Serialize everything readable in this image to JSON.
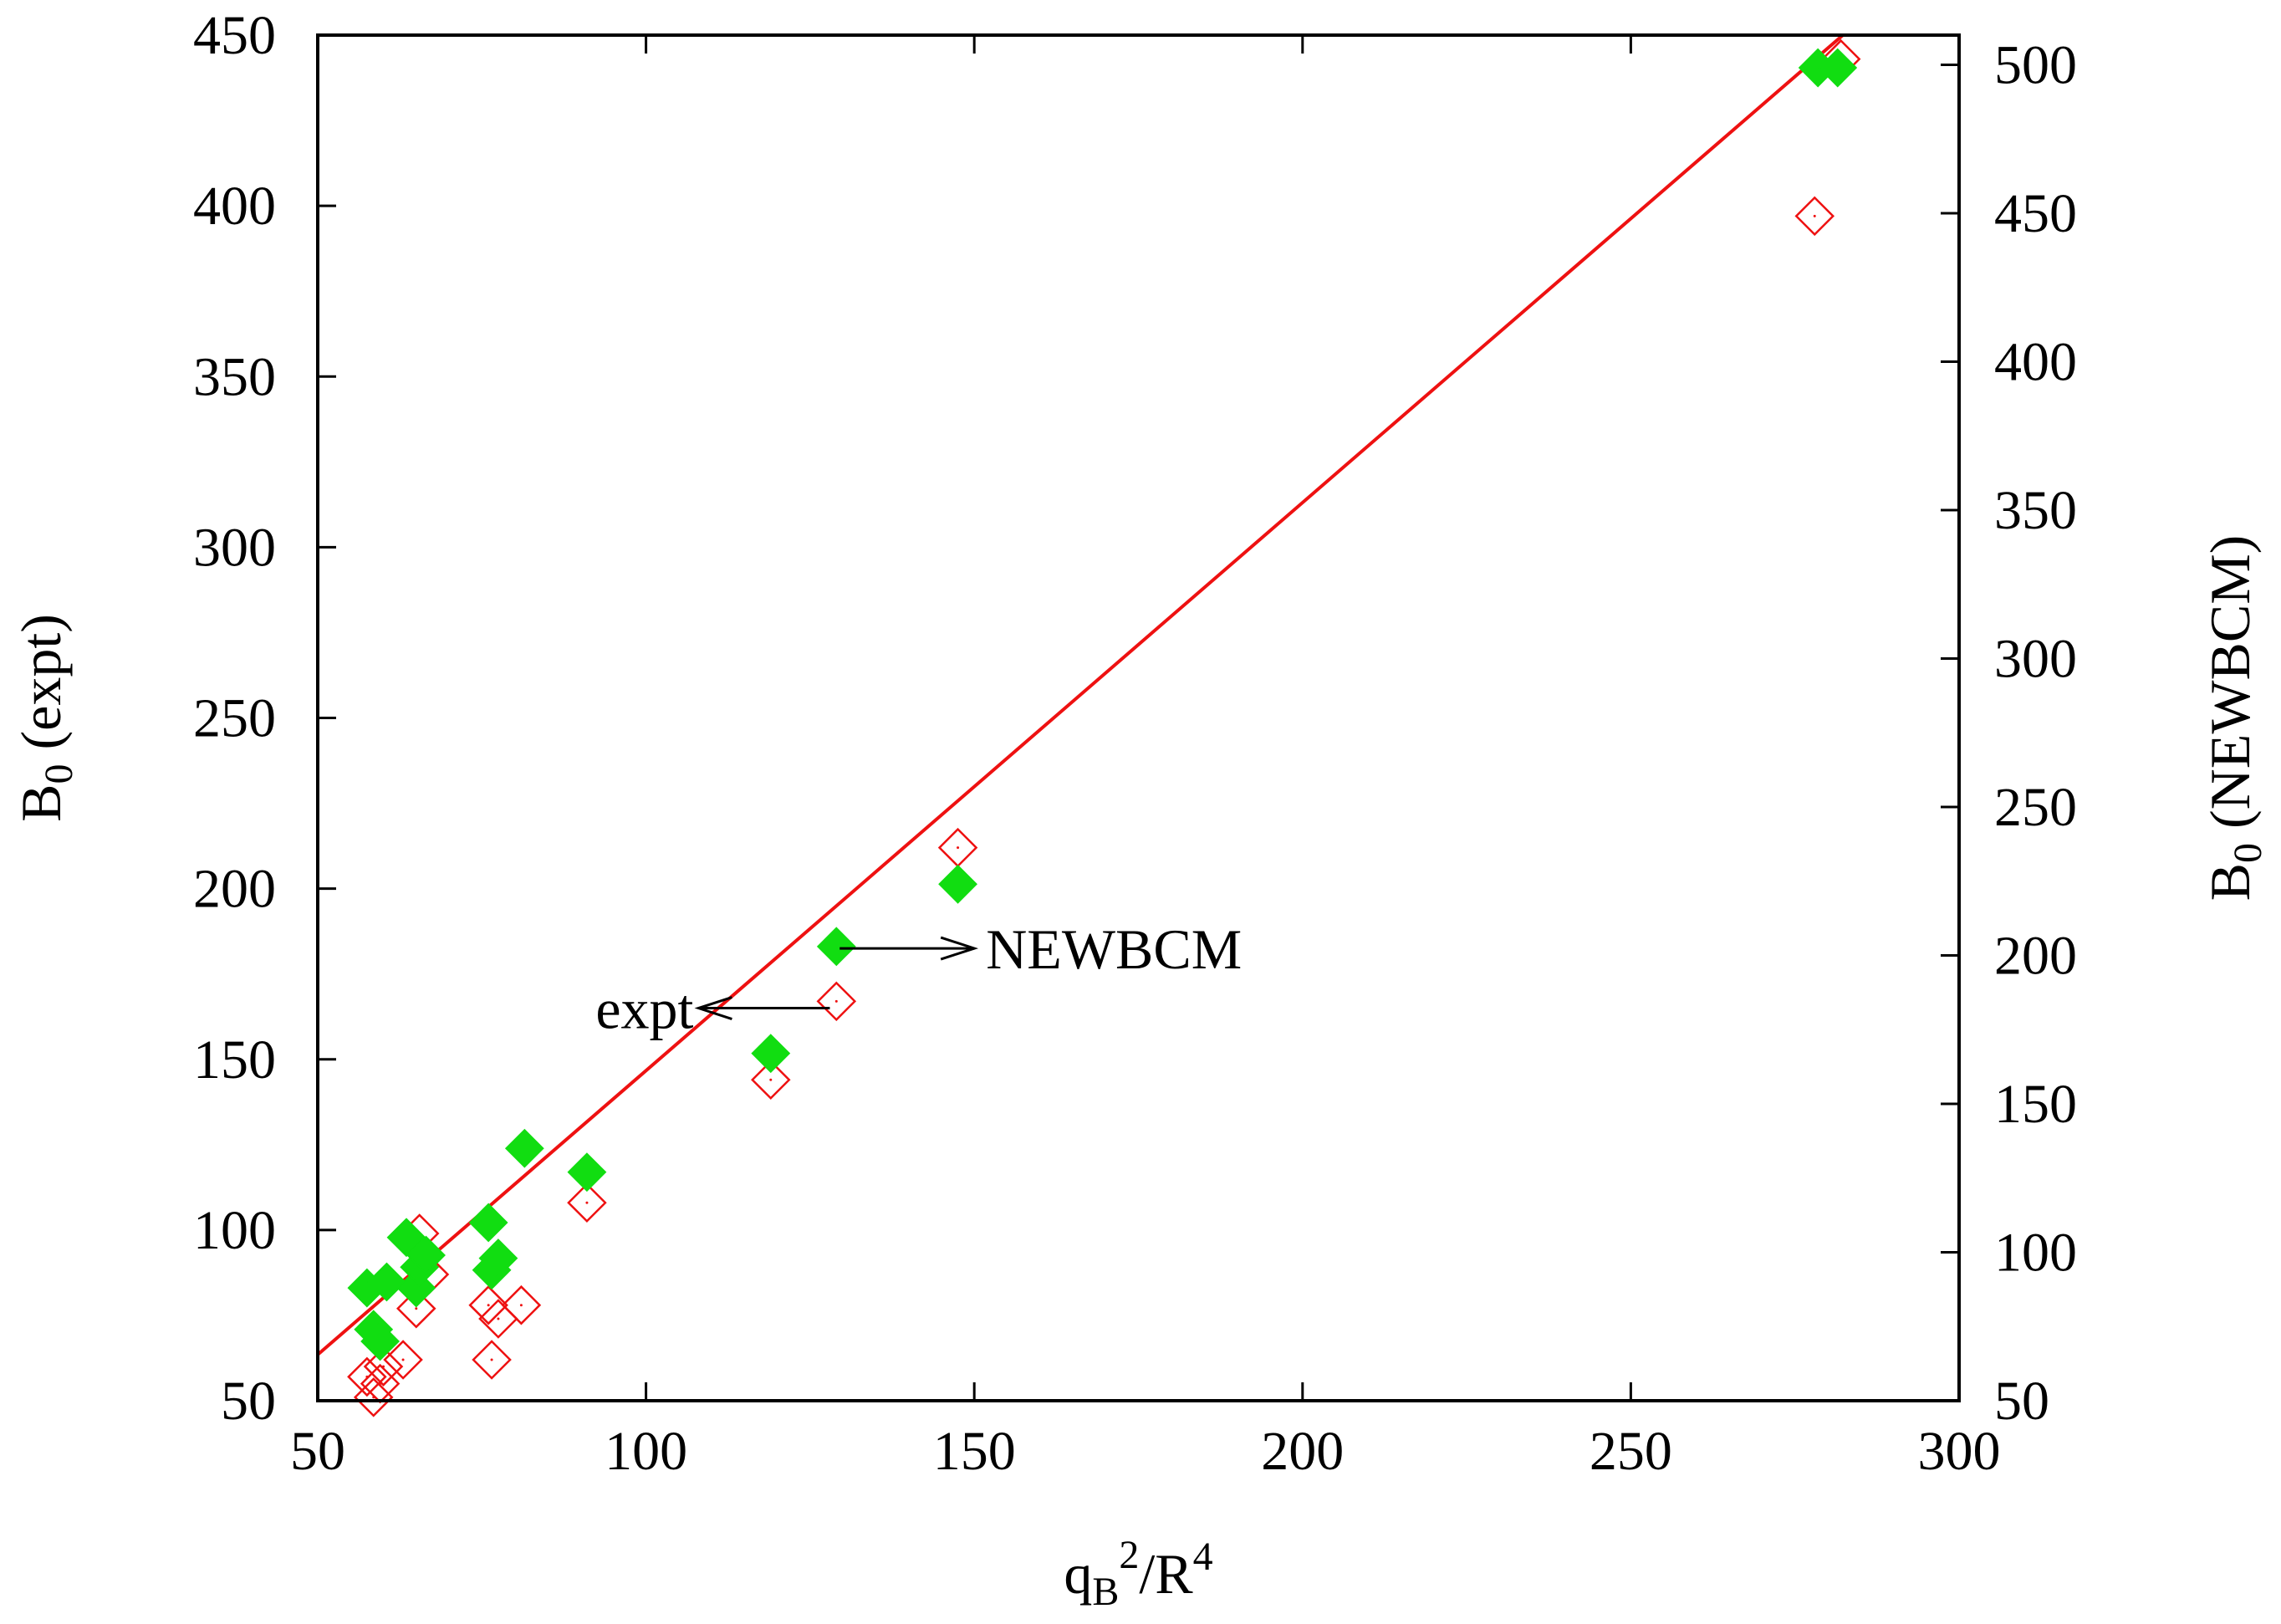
{
  "chart_data": {
    "type": "scatter",
    "title": "",
    "xlabel": {
      "base": "q",
      "sub": "B",
      "sup1": "2",
      "mid": "/R",
      "sup2": "4"
    },
    "ylabel_left": {
      "base": "B",
      "sub": "0",
      "rest": " (expt)"
    },
    "ylabel_right": {
      "base": "B",
      "sub": "0",
      "rest": " (NEWBCM)"
    },
    "xlim": [
      50,
      300
    ],
    "ylim_left": [
      50,
      450
    ],
    "ylim_right": [
      50,
      510
    ],
    "x_ticks": [
      "50",
      "100",
      "150",
      "200",
      "250",
      "300"
    ],
    "y_ticks_left": [
      "50",
      "100",
      "150",
      "200",
      "250",
      "300",
      "350",
      "400",
      "450"
    ],
    "y_ticks_right": [
      "50",
      "100",
      "150",
      "200",
      "250",
      "300",
      "350",
      "400",
      "450",
      "500"
    ],
    "fit_line": {
      "x": [
        50,
        282.3
      ],
      "y": [
        63.5,
        450
      ],
      "color": "#ee1111"
    },
    "annotations": [
      {
        "text": "NEWBCM",
        "arrow_from": [
          129.5,
          182.5
        ],
        "arrow_to": [
          150,
          182.5
        ],
        "direction": "right"
      },
      {
        "text": "expt",
        "arrow_from": [
          128,
          165
        ],
        "arrow_to": [
          108,
          165
        ],
        "direction": "left"
      }
    ],
    "series": [
      {
        "name": "expt",
        "axis": "left",
        "marker": "open-diamond",
        "color": "#ee1111",
        "points": [
          [
            57.5,
            57
          ],
          [
            58.5,
            51
          ],
          [
            59.5,
            55
          ],
          [
            60,
            60
          ],
          [
            63,
            62
          ],
          [
            65,
            77
          ],
          [
            65.5,
            99
          ],
          [
            67,
            87
          ],
          [
            76,
            78
          ],
          [
            76.5,
            62
          ],
          [
            77.5,
            74
          ],
          [
            81,
            78
          ],
          [
            91,
            108
          ],
          [
            119,
            144
          ],
          [
            129,
            167
          ],
          [
            147.5,
            212
          ],
          [
            278,
            397
          ],
          [
            282,
            443
          ]
        ]
      },
      {
        "name": "NEWBCM",
        "axis": "right",
        "marker": "filled-diamond",
        "color": "#11dd11",
        "points": [
          [
            57.5,
            88
          ],
          [
            58.5,
            74
          ],
          [
            59.5,
            70
          ],
          [
            60.5,
            90
          ],
          [
            63.5,
            105
          ],
          [
            65,
            88
          ],
          [
            65.5,
            95
          ],
          [
            66.5,
            99
          ],
          [
            76,
            110
          ],
          [
            76.5,
            94
          ],
          [
            77.5,
            98
          ],
          [
            81.5,
            135
          ],
          [
            91,
            127
          ],
          [
            119,
            167
          ],
          [
            129,
            203
          ],
          [
            147.5,
            224
          ],
          [
            278.5,
            499
          ],
          [
            281.5,
            499
          ]
        ]
      }
    ]
  }
}
